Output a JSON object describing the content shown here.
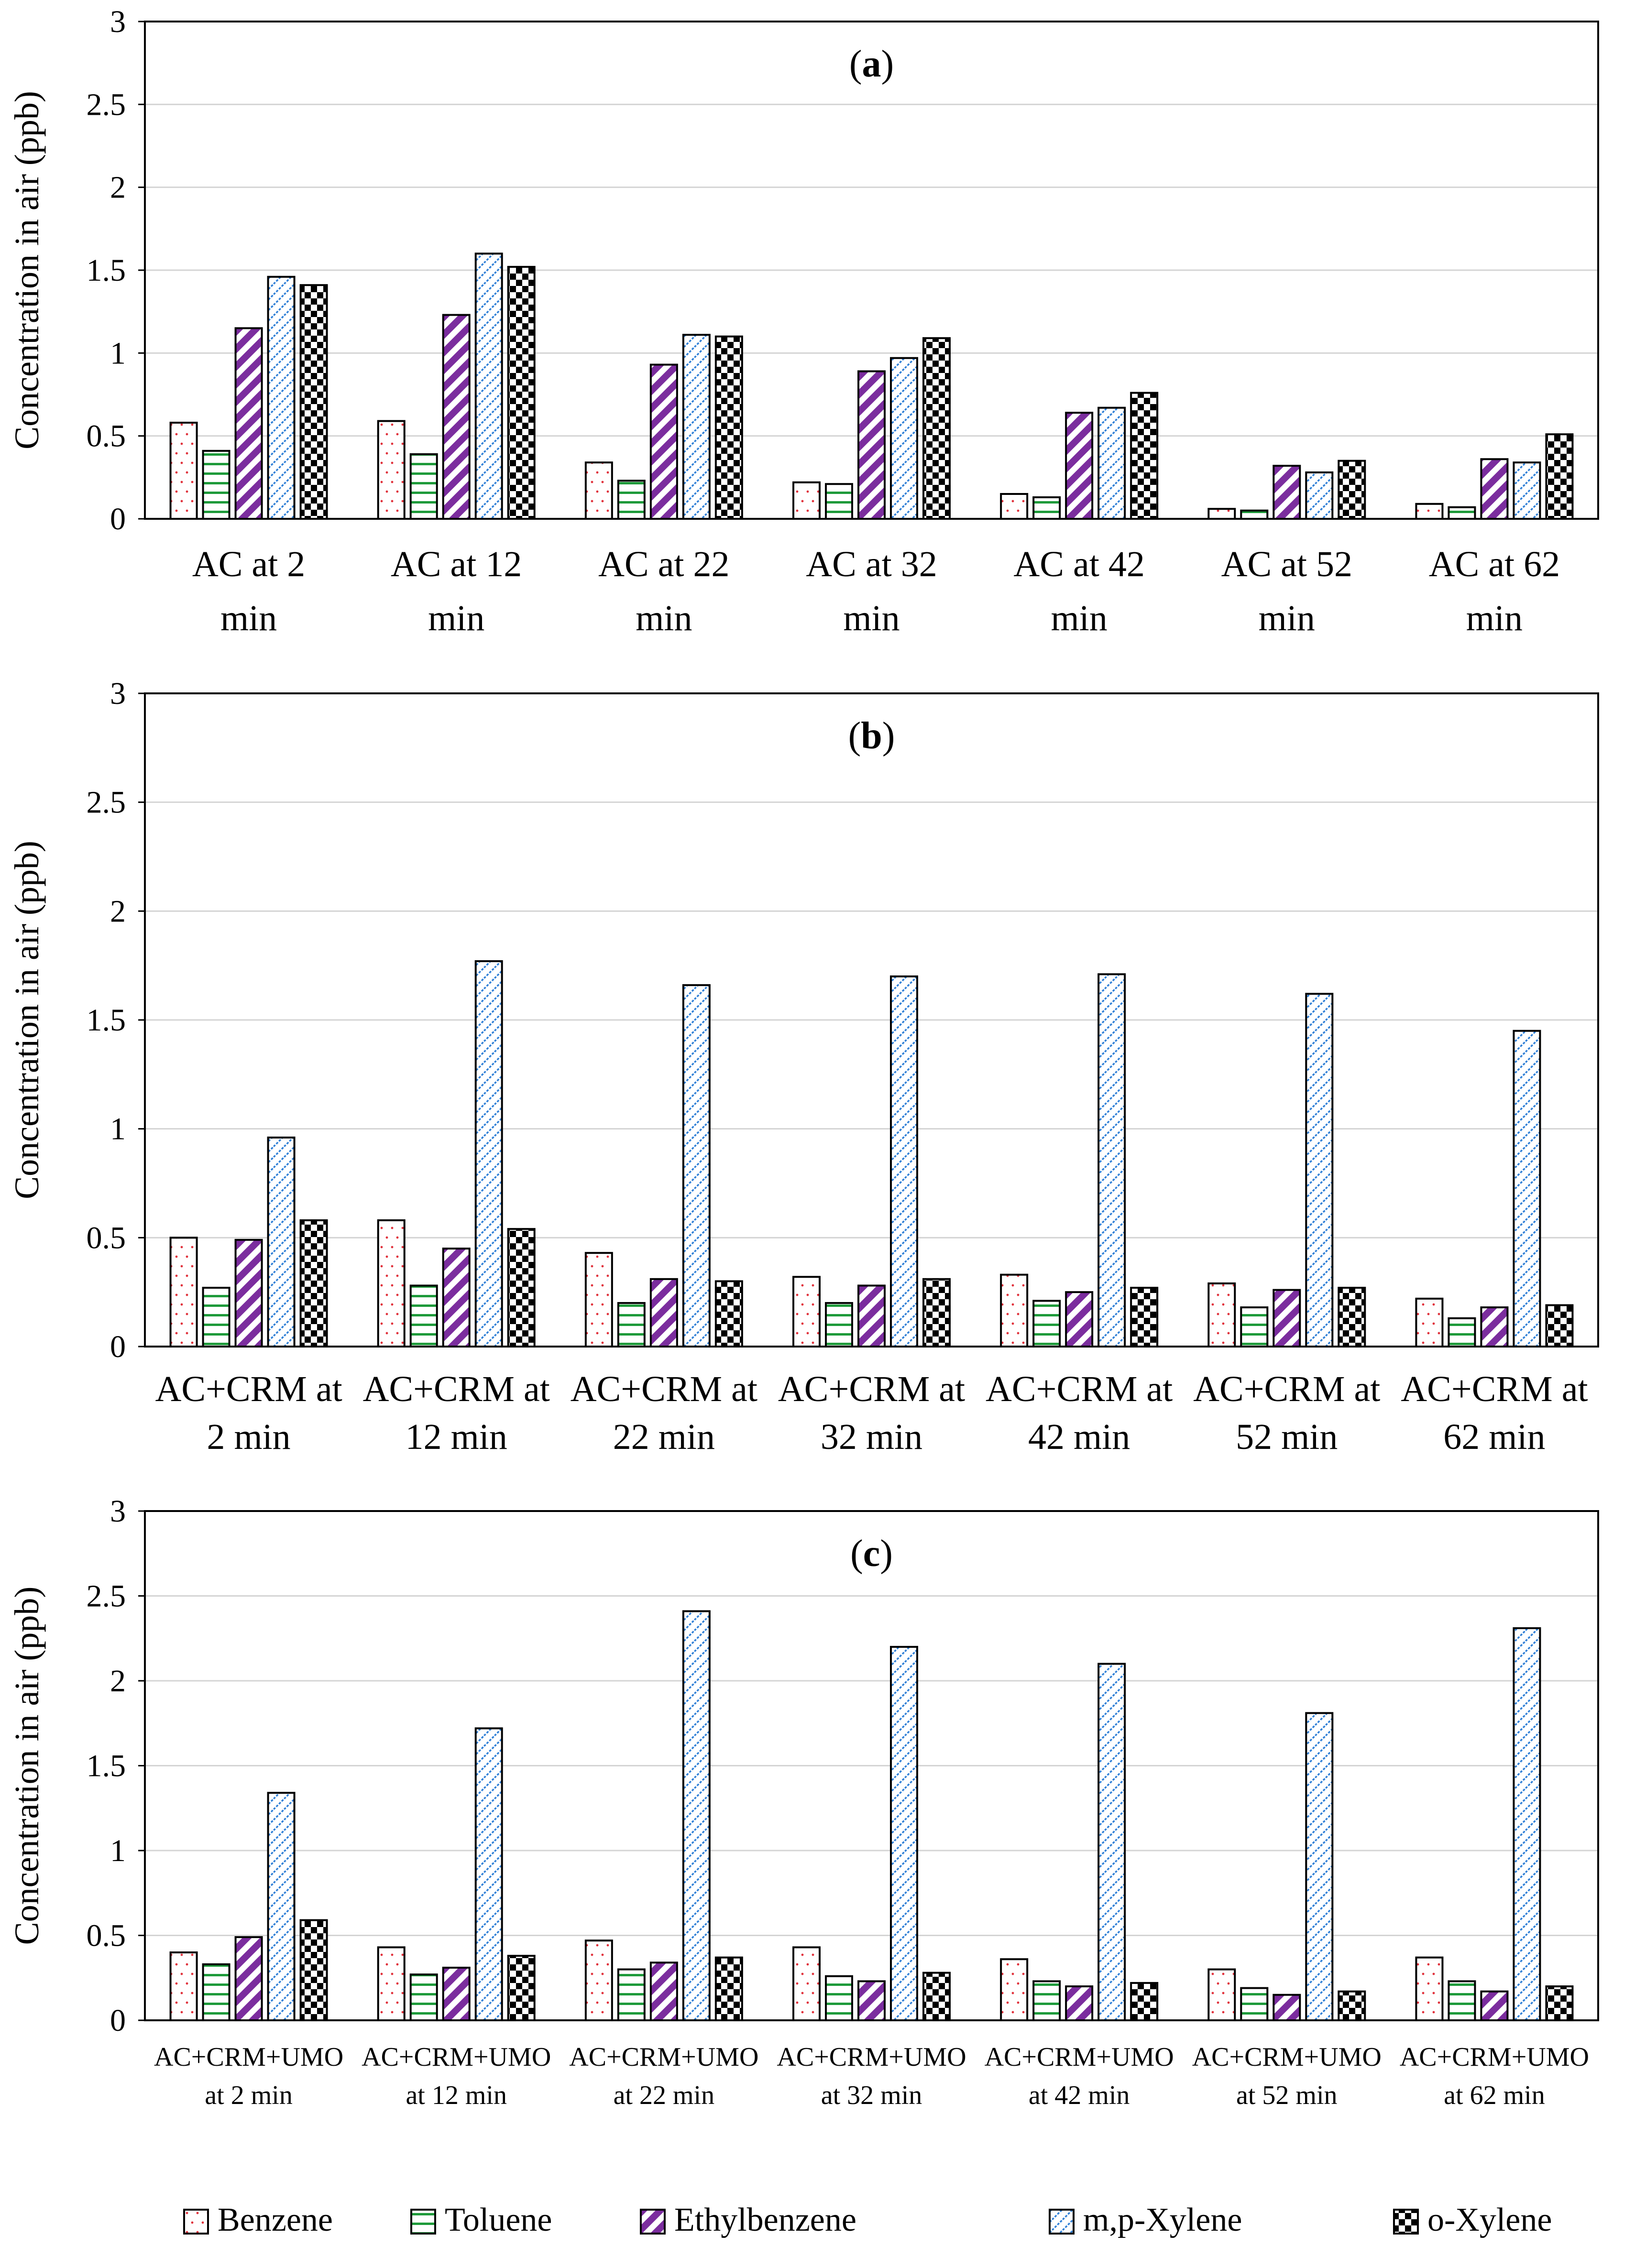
{
  "legend": [
    "Benzene",
    "Toluene",
    "Ethylbenzene",
    "m,p-Xylene",
    "o-Xylene"
  ],
  "chart_data": [
    {
      "type": "bar",
      "title": "(a)",
      "title_letter": "a",
      "xlabel": "",
      "ylabel": "Concentration in air (ppb)",
      "ylim": [
        0,
        3
      ],
      "yticks": [
        "0",
        "0.5",
        "1",
        "1.5",
        "2",
        "2.5",
        "3"
      ],
      "grid": true,
      "categories": [
        [
          "AC at 2",
          "min"
        ],
        [
          "AC at 12",
          "min"
        ],
        [
          "AC at 22",
          "min"
        ],
        [
          "AC at 32",
          "min"
        ],
        [
          "AC at 42",
          "min"
        ],
        [
          "AC at 52",
          "min"
        ],
        [
          "AC at 62",
          "min"
        ]
      ],
      "series": [
        {
          "name": "Benzene",
          "values": [
            0.58,
            0.59,
            0.34,
            0.22,
            0.15,
            0.06,
            0.09
          ]
        },
        {
          "name": "Toluene",
          "values": [
            0.41,
            0.39,
            0.23,
            0.21,
            0.13,
            0.05,
            0.07
          ]
        },
        {
          "name": "Ethylbenzene",
          "values": [
            1.15,
            1.23,
            0.93,
            0.89,
            0.64,
            0.32,
            0.36
          ]
        },
        {
          "name": "m,p-Xylene",
          "values": [
            1.46,
            1.6,
            1.11,
            0.97,
            0.67,
            0.28,
            0.34
          ]
        },
        {
          "name": "o-Xylene",
          "values": [
            1.41,
            1.52,
            1.1,
            1.09,
            0.76,
            0.35,
            0.51
          ]
        }
      ]
    },
    {
      "type": "bar",
      "title": "(b)",
      "title_letter": "b",
      "xlabel": "",
      "ylabel": "Concentration in air (ppb)",
      "ylim": [
        0,
        3
      ],
      "yticks": [
        "0",
        "0.5",
        "1",
        "1.5",
        "2",
        "2.5",
        "3"
      ],
      "grid": true,
      "categories": [
        [
          "AC+CRM at",
          "2 min"
        ],
        [
          "AC+CRM at",
          "12 min"
        ],
        [
          "AC+CRM at",
          "22 min"
        ],
        [
          "AC+CRM at",
          "32 min"
        ],
        [
          "AC+CRM at",
          "42 min"
        ],
        [
          "AC+CRM at",
          "52 min"
        ],
        [
          "AC+CRM at",
          "62 min"
        ]
      ],
      "series": [
        {
          "name": "Benzene",
          "values": [
            0.5,
            0.58,
            0.43,
            0.32,
            0.33,
            0.29,
            0.22
          ]
        },
        {
          "name": "Toluene",
          "values": [
            0.27,
            0.28,
            0.2,
            0.2,
            0.21,
            0.18,
            0.13
          ]
        },
        {
          "name": "Ethylbenzene",
          "values": [
            0.49,
            0.45,
            0.31,
            0.28,
            0.25,
            0.26,
            0.18
          ]
        },
        {
          "name": "m,p-Xylene",
          "values": [
            0.96,
            1.77,
            1.66,
            1.7,
            1.71,
            1.62,
            1.45
          ]
        },
        {
          "name": "o-Xylene",
          "values": [
            0.58,
            0.54,
            0.3,
            0.31,
            0.27,
            0.27,
            0.19
          ]
        }
      ]
    },
    {
      "type": "bar",
      "title": "(c)",
      "title_letter": "c",
      "xlabel": "",
      "ylabel": "Concentration in air (ppb)",
      "ylim": [
        0,
        3
      ],
      "yticks": [
        "0",
        "0.5",
        "1",
        "1.5",
        "2",
        "2.5",
        "3"
      ],
      "grid": true,
      "categories": [
        [
          "AC+CRM+UMO",
          "at 2 min"
        ],
        [
          "AC+CRM+UMO",
          "at 12 min"
        ],
        [
          "AC+CRM+UMO",
          "at 22 min"
        ],
        [
          "AC+CRM+UMO",
          "at 32 min"
        ],
        [
          "AC+CRM+UMO",
          "at 42 min"
        ],
        [
          "AC+CRM+UMO",
          "at 52 min"
        ],
        [
          "AC+CRM+UMO",
          "at 62 min"
        ]
      ],
      "series": [
        {
          "name": "Benzene",
          "values": [
            0.4,
            0.43,
            0.47,
            0.43,
            0.36,
            0.3,
            0.37
          ]
        },
        {
          "name": "Toluene",
          "values": [
            0.33,
            0.27,
            0.3,
            0.26,
            0.23,
            0.19,
            0.23
          ]
        },
        {
          "name": "Ethylbenzene",
          "values": [
            0.49,
            0.31,
            0.34,
            0.23,
            0.2,
            0.15,
            0.17
          ]
        },
        {
          "name": "m,p-Xylene",
          "values": [
            1.34,
            1.72,
            2.41,
            2.2,
            2.1,
            1.81,
            2.31
          ]
        },
        {
          "name": "o-Xylene",
          "values": [
            0.59,
            0.38,
            0.37,
            0.28,
            0.22,
            0.17,
            0.2
          ]
        }
      ]
    }
  ]
}
